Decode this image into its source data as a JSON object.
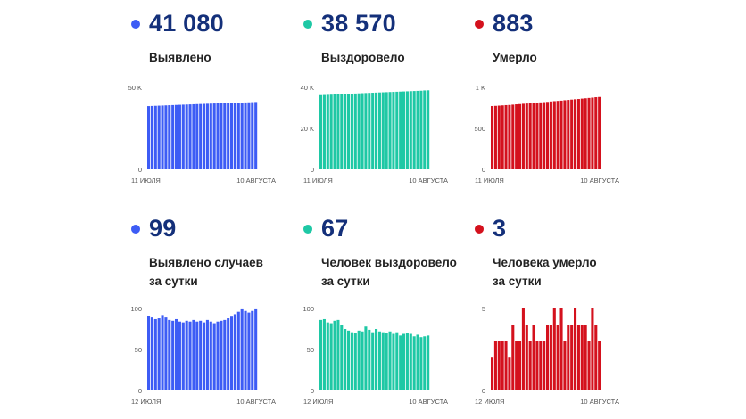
{
  "colors": {
    "blue": "#3d5cf5",
    "teal": "#1ec8a5",
    "red": "#d4111d"
  },
  "chart_data": [
    {
      "id": "c0",
      "type": "bar",
      "color": "blue",
      "big": "41 080",
      "label": "Выявлено",
      "yticks": [
        {
          "v": 50000,
          "t": "50 K"
        },
        {
          "v": 0,
          "t": "0"
        }
      ],
      "ylim": [
        0,
        50000
      ],
      "xstart": "11 ИЮЛЯ",
      "xend": "10 АВГУСТА",
      "values": [
        38550,
        38640,
        38730,
        38820,
        38910,
        39000,
        39090,
        39180,
        39270,
        39360,
        39450,
        39540,
        39620,
        39700,
        39780,
        39860,
        39940,
        40020,
        40100,
        40180,
        40250,
        40320,
        40390,
        40460,
        40530,
        40600,
        40670,
        40740,
        40810,
        40880,
        40981,
        41080
      ]
    },
    {
      "id": "c1",
      "type": "bar",
      "color": "teal",
      "big": "38 570",
      "label": "Выздоровело",
      "yticks": [
        {
          "v": 40000,
          "t": "40 K"
        },
        {
          "v": 20000,
          "t": "20 K"
        },
        {
          "v": 0,
          "t": "0"
        }
      ],
      "ylim": [
        0,
        40000
      ],
      "xstart": "11 ИЮЛЯ",
      "xend": "10 АВГУСТА",
      "values": [
        36200,
        36280,
        36360,
        36440,
        36520,
        36600,
        36680,
        36760,
        36840,
        36920,
        37000,
        37080,
        37160,
        37240,
        37310,
        37380,
        37450,
        37520,
        37590,
        37660,
        37730,
        37800,
        37870,
        37940,
        38010,
        38080,
        38150,
        38220,
        38290,
        38360,
        38503,
        38570
      ]
    },
    {
      "id": "c2",
      "type": "bar",
      "color": "red",
      "big": "883",
      "label": "Умерло",
      "yticks": [
        {
          "v": 1000,
          "t": "1 K"
        },
        {
          "v": 500,
          "t": "500"
        },
        {
          "v": 0,
          "t": "0"
        }
      ],
      "ylim": [
        0,
        1000
      ],
      "xstart": "11 ИЮЛЯ",
      "xend": "10 АВГУСТА",
      "values": [
        772,
        774,
        777,
        780,
        783,
        785,
        789,
        793,
        796,
        800,
        803,
        807,
        810,
        813,
        817,
        820,
        823,
        828,
        832,
        835,
        838,
        843,
        847,
        851,
        855,
        858,
        863,
        867,
        871,
        875,
        880,
        883
      ]
    },
    {
      "id": "c3",
      "type": "bar",
      "color": "blue",
      "big": "99",
      "label": "Выявлено случаев\nза сутки",
      "yticks": [
        {
          "v": 100,
          "t": "100"
        },
        {
          "v": 50,
          "t": "50"
        },
        {
          "v": 0,
          "t": "0"
        }
      ],
      "ylim": [
        0,
        100
      ],
      "xstart": "12 ИЮЛЯ",
      "xend": "10 АВГУСТА",
      "values": [
        91,
        89,
        87,
        88,
        92,
        89,
        86,
        85,
        87,
        84,
        83,
        85,
        84,
        86,
        84,
        85,
        83,
        86,
        84,
        82,
        84,
        85,
        86,
        88,
        90,
        93,
        96,
        99,
        97,
        95,
        97,
        99
      ]
    },
    {
      "id": "c4",
      "type": "bar",
      "color": "teal",
      "big": "67",
      "label": "Человек выздоровело\nза сутки",
      "yticks": [
        {
          "v": 100,
          "t": "100"
        },
        {
          "v": 50,
          "t": "50"
        },
        {
          "v": 0,
          "t": "0"
        }
      ],
      "ylim": [
        0,
        100
      ],
      "xstart": "12 ИЮЛЯ",
      "xend": "10 АВГУСТА",
      "values": [
        86,
        87,
        83,
        82,
        85,
        86,
        80,
        75,
        73,
        71,
        70,
        73,
        72,
        78,
        74,
        71,
        75,
        72,
        71,
        70,
        72,
        69,
        71,
        67,
        69,
        70,
        69,
        66,
        68,
        65,
        66,
        67
      ]
    },
    {
      "id": "c5",
      "type": "bar",
      "color": "red",
      "big": "3",
      "label": "Человека умерло\nза сутки",
      "yticks": [
        {
          "v": 5,
          "t": "5"
        },
        {
          "v": 0,
          "t": "0"
        }
      ],
      "ylim": [
        0,
        5
      ],
      "xstart": "12 ИЮЛЯ",
      "xend": "10 АВГУСТА",
      "values": [
        2,
        3,
        3,
        3,
        3,
        2,
        4,
        3,
        3,
        5,
        4,
        3,
        4,
        3,
        3,
        3,
        4,
        4,
        5,
        4,
        5,
        3,
        4,
        4,
        5,
        4,
        4,
        4,
        3,
        5,
        4,
        3
      ]
    }
  ]
}
